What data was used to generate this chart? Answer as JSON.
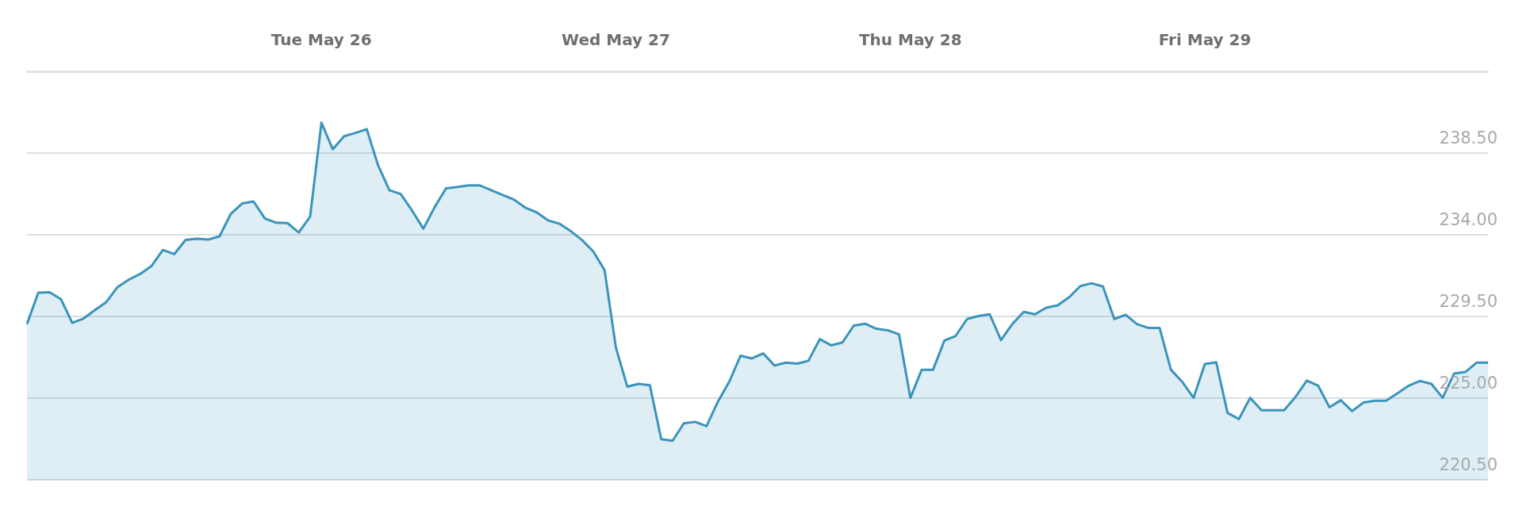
{
  "chart_data": {
    "type": "area",
    "categories": [
      null,
      null,
      null,
      null,
      null,
      null,
      null,
      null,
      null,
      null,
      null,
      null,
      null,
      null,
      null,
      null,
      null,
      null,
      null,
      null,
      null,
      null,
      null,
      null,
      null,
      null,
      "Tue May 26",
      null,
      null,
      null,
      null,
      null,
      null,
      null,
      null,
      null,
      null,
      null,
      null,
      null,
      null,
      null,
      null,
      null,
      null,
      null,
      null,
      null,
      null,
      null,
      null,
      null,
      "Wed May 27",
      null,
      null,
      null,
      null,
      null,
      null,
      null,
      null,
      null,
      null,
      null,
      null,
      null,
      null,
      null,
      null,
      null,
      null,
      null,
      null,
      null,
      null,
      null,
      null,
      null,
      "Thu May 28",
      null,
      null,
      null,
      null,
      null,
      null,
      null,
      null,
      null,
      null,
      null,
      null,
      null,
      null,
      null,
      null,
      null,
      null,
      null,
      null,
      null,
      null,
      null,
      null,
      null,
      "Fri May 29",
      null,
      null,
      null,
      null,
      null,
      null,
      null,
      null,
      null,
      null,
      null,
      null,
      null,
      null,
      null,
      null,
      null,
      null,
      null,
      null,
      null,
      null,
      null,
      null,
      null
    ],
    "series": [
      {
        "color": "#3b94bb",
        "values": [
          229.09,
          230.82,
          230.84,
          230.46,
          229.16,
          229.4,
          229.86,
          230.3,
          231.13,
          231.54,
          231.85,
          232.29,
          233.17,
          232.94,
          233.72,
          233.79,
          233.74,
          233.92,
          235.16,
          235.73,
          235.84,
          234.91,
          234.67,
          234.65,
          234.13,
          235.01,
          240.18,
          238.71,
          239.43,
          239.61,
          239.82,
          237.83,
          236.46,
          236.25,
          235.34,
          234.34,
          235.53,
          236.56,
          236.64,
          236.72,
          236.72,
          236.46,
          236.2,
          235.94,
          235.5,
          235.24,
          234.8,
          234.62,
          234.21,
          233.72,
          233.09,
          232.06,
          227.79,
          225.65,
          225.8,
          225.72,
          222.75,
          222.67,
          223.63,
          223.71,
          223.47,
          224.82,
          225.91,
          227.35,
          227.2,
          227.48,
          226.81,
          226.97,
          226.91,
          227.07,
          228.26,
          227.92,
          228.08,
          229.01,
          229.11,
          228.83,
          228.75,
          228.52,
          225.03,
          226.58,
          226.58,
          228.18,
          228.44,
          229.37,
          229.53,
          229.63,
          228.21,
          229.09,
          229.76,
          229.63,
          229.99,
          230.12,
          230.56,
          231.18,
          231.34,
          231.16,
          229.37,
          229.6,
          229.09,
          228.88,
          228.88,
          226.58,
          225.91,
          225.03,
          226.89,
          226.99,
          224.2,
          223.86,
          225.03,
          224.35,
          224.35,
          224.35,
          225.08,
          225.98,
          225.7,
          224.51,
          224.9,
          224.3,
          224.77,
          224.87,
          224.87,
          225.28,
          225.7,
          225.96,
          225.8,
          225.03,
          226.37,
          226.45,
          226.97,
          226.97
        ]
      }
    ],
    "ylim": [
      220.5,
      243
    ],
    "yticks": [
      {
        "value": 220.5,
        "label": "220.50"
      },
      {
        "value": 225,
        "label": "225.00"
      },
      {
        "value": 229.5,
        "label": "229.50"
      },
      {
        "value": 234,
        "label": "234.00"
      },
      {
        "value": 238.5,
        "label": "238.50"
      },
      {
        "value": 243,
        "label": null
      }
    ],
    "grid": "y",
    "legend": false
  }
}
